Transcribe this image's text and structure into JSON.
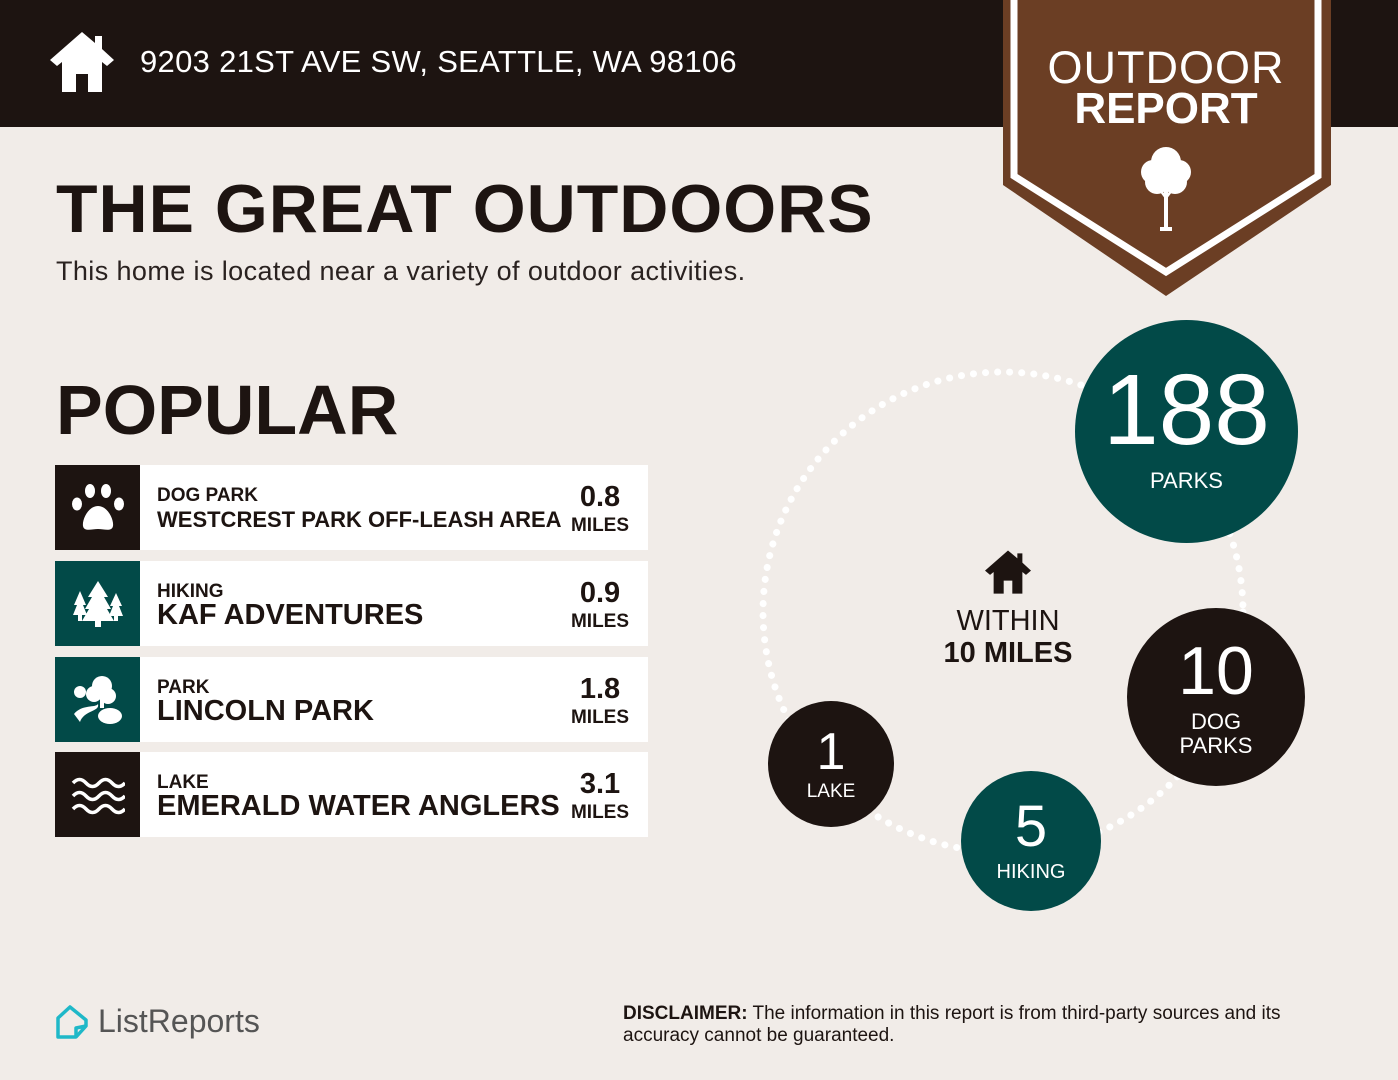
{
  "header": {
    "address": "9203 21ST AVE SW, SEATTLE, WA 98106",
    "icon": "home-icon"
  },
  "badge": {
    "line1": "OUTDOOR",
    "line2": "REPORT",
    "icon": "tree-icon"
  },
  "title": "THE GREAT OUTDOORS",
  "subtitle": "This home is located near a variety of outdoor activities.",
  "popular": {
    "heading": "POPULAR",
    "items": [
      {
        "category": "DOG PARK",
        "name": "WESTCREST PARK OFF-LEASH AREA",
        "distance": "0.8",
        "unit": "MILES",
        "icon": "paw-icon",
        "color": "#1d1411"
      },
      {
        "category": "HIKING",
        "name": "KAF ADVENTURES",
        "distance": "0.9",
        "unit": "MILES",
        "icon": "trees-icon",
        "color": "#024a48"
      },
      {
        "category": "PARK",
        "name": "LINCOLN PARK",
        "distance": "1.8",
        "unit": "MILES",
        "icon": "park-icon",
        "color": "#024a48"
      },
      {
        "category": "LAKE",
        "name": "EMERALD WATER ANGLERS",
        "distance": "3.1",
        "unit": "MILES",
        "icon": "waves-icon",
        "color": "#1d1411"
      }
    ]
  },
  "radius": {
    "line1": "WITHIN",
    "line2": "10 MILES",
    "icon": "home-icon"
  },
  "counts": [
    {
      "value": "188",
      "label": "PARKS",
      "color": "#024a48"
    },
    {
      "value": "10",
      "label": "DOG PARKS",
      "color": "#1d1411"
    },
    {
      "value": "5",
      "label": "HIKING",
      "color": "#024a48"
    },
    {
      "value": "1",
      "label": "LAKE",
      "color": "#1d1411"
    }
  ],
  "footer": {
    "logo": "ListReports",
    "disclaimer_label": "DISCLAIMER:",
    "disclaimer": " The information in this report is from third-party sources and its accuracy cannot be guaranteed."
  },
  "colors": {
    "dark": "#1d1411",
    "teal": "#024a48",
    "brown": "#6b3e24",
    "background": "#f1ece8",
    "logo": "#1fb8c8"
  }
}
